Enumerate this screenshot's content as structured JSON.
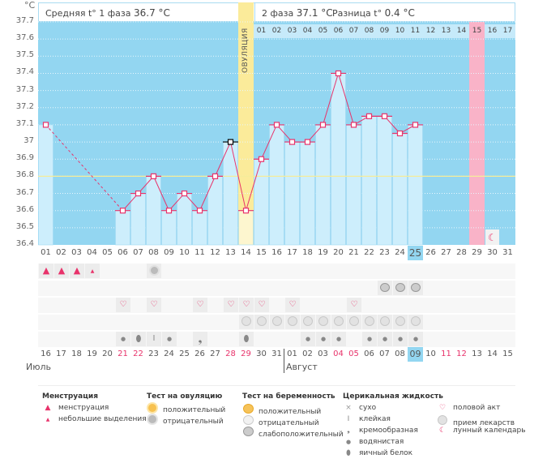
{
  "header": {
    "phase1_label": "Средняя t° 1 фаза",
    "phase1_value": "36.7 °C",
    "phase2_label": "2 фаза",
    "phase2_value": "37.1 °C",
    "diff_label": "Разница t°",
    "diff_value": "0.4 °C",
    "ovulation_label": "ОВУЛЯЦИЯ"
  },
  "chart_data": {
    "type": "line",
    "title": "",
    "ylabel": "°C",
    "xlabel": "",
    "ylim": [
      36.4,
      37.7
    ],
    "yticks": [
      "37.7",
      "37.6",
      "37.5",
      "37.4",
      "37.3",
      "37.2",
      "37.1",
      "37",
      "36.9",
      "36.8",
      "36.7",
      "36.6",
      "36.5",
      "36.4"
    ],
    "coverline": 36.8,
    "cycle_days": [
      "01",
      "02",
      "03",
      "04",
      "05",
      "06",
      "07",
      "08",
      "09",
      "10",
      "11",
      "12",
      "13",
      "14",
      "15",
      "16",
      "17",
      "18",
      "19",
      "20",
      "21",
      "22",
      "23",
      "24",
      "25",
      "26",
      "27",
      "28",
      "29",
      "30",
      "31"
    ],
    "series": [
      {
        "name": "BBT",
        "values": [
          37.1,
          null,
          null,
          null,
          null,
          36.6,
          36.7,
          36.8,
          36.6,
          36.7,
          36.6,
          36.8,
          37.0,
          36.6,
          36.9,
          37.1,
          37.0,
          37.0,
          37.1,
          37.4,
          37.1,
          37.15,
          37.15,
          37.05,
          37.1,
          null,
          null,
          null,
          null,
          null,
          null
        ]
      }
    ],
    "highlighted_cycle_day": "25",
    "ovulation_cycle_day_index": 13,
    "marked_black_day_index": 12,
    "luteal_days": [
      "01",
      "02",
      "03",
      "04",
      "05",
      "06",
      "07",
      "08",
      "09",
      "10",
      "11",
      "12",
      "13",
      "14",
      "15",
      "16",
      "17"
    ],
    "luteal_highlight_day": "15",
    "calendar_dates": [
      "16",
      "17",
      "18",
      "19",
      "20",
      "21",
      "22",
      "23",
      "24",
      "25",
      "26",
      "27",
      "28",
      "29",
      "30",
      "31",
      "01",
      "02",
      "03",
      "04",
      "05",
      "06",
      "07",
      "08",
      "09",
      "10",
      "11",
      "12",
      "13",
      "14",
      "15"
    ],
    "weekend_date_indices": [
      5,
      6,
      12,
      13,
      19,
      20,
      26,
      27
    ],
    "today_date_index": 24,
    "months": [
      {
        "label": "Июль"
      },
      {
        "label": "Август"
      }
    ],
    "pink_column_index": 28,
    "moon_column_index": 29
  },
  "rows": {
    "menstruation": {
      "heavy": [
        0,
        1,
        2
      ],
      "light": [
        3
      ]
    },
    "ovulation_test": {
      "negative": [
        7
      ]
    },
    "pregnancy_test": {
      "weak_positive": [
        22,
        23,
        24
      ]
    },
    "intercourse": [
      5,
      7,
      10,
      12,
      13,
      14,
      16,
      20
    ],
    "medication": [
      13,
      14,
      15,
      16,
      17,
      18,
      19,
      20,
      21,
      22,
      23,
      24
    ],
    "cervical": {
      "watery": [
        5,
        8,
        17,
        18,
        19,
        21,
        22,
        23,
        24
      ],
      "egg_white": [
        6,
        13
      ],
      "sticky": [
        7
      ],
      "creamy": [
        10
      ]
    }
  },
  "legend": {
    "menstruation": {
      "title": "Менструация",
      "items": [
        "менструация",
        "небольшие выделения"
      ]
    },
    "ovulation_test": {
      "title": "Тест на овуляцию",
      "items": [
        "положительный",
        "отрицательный"
      ]
    },
    "pregnancy_test": {
      "title": "Тест на беременность",
      "items": [
        "положительный",
        "отрицательный",
        "слабоположительный"
      ]
    },
    "cervical": {
      "title": "Церикальная жидкость",
      "items": [
        "сухо",
        "клейкая",
        "кремообразная",
        "водянистая",
        "яичный белок"
      ]
    },
    "other": {
      "items": [
        "половой акт",
        "прием лекарств",
        "лунный календарь"
      ]
    }
  },
  "colors": {
    "plot_bg": "#93d6f1",
    "bar": "#cdeefc",
    "line": "#e8336b",
    "coverline": "#f5ec9a",
    "ovulation": "#fbeb9a",
    "pink": "#f9b3c8",
    "weekend": "#e8336b"
  }
}
